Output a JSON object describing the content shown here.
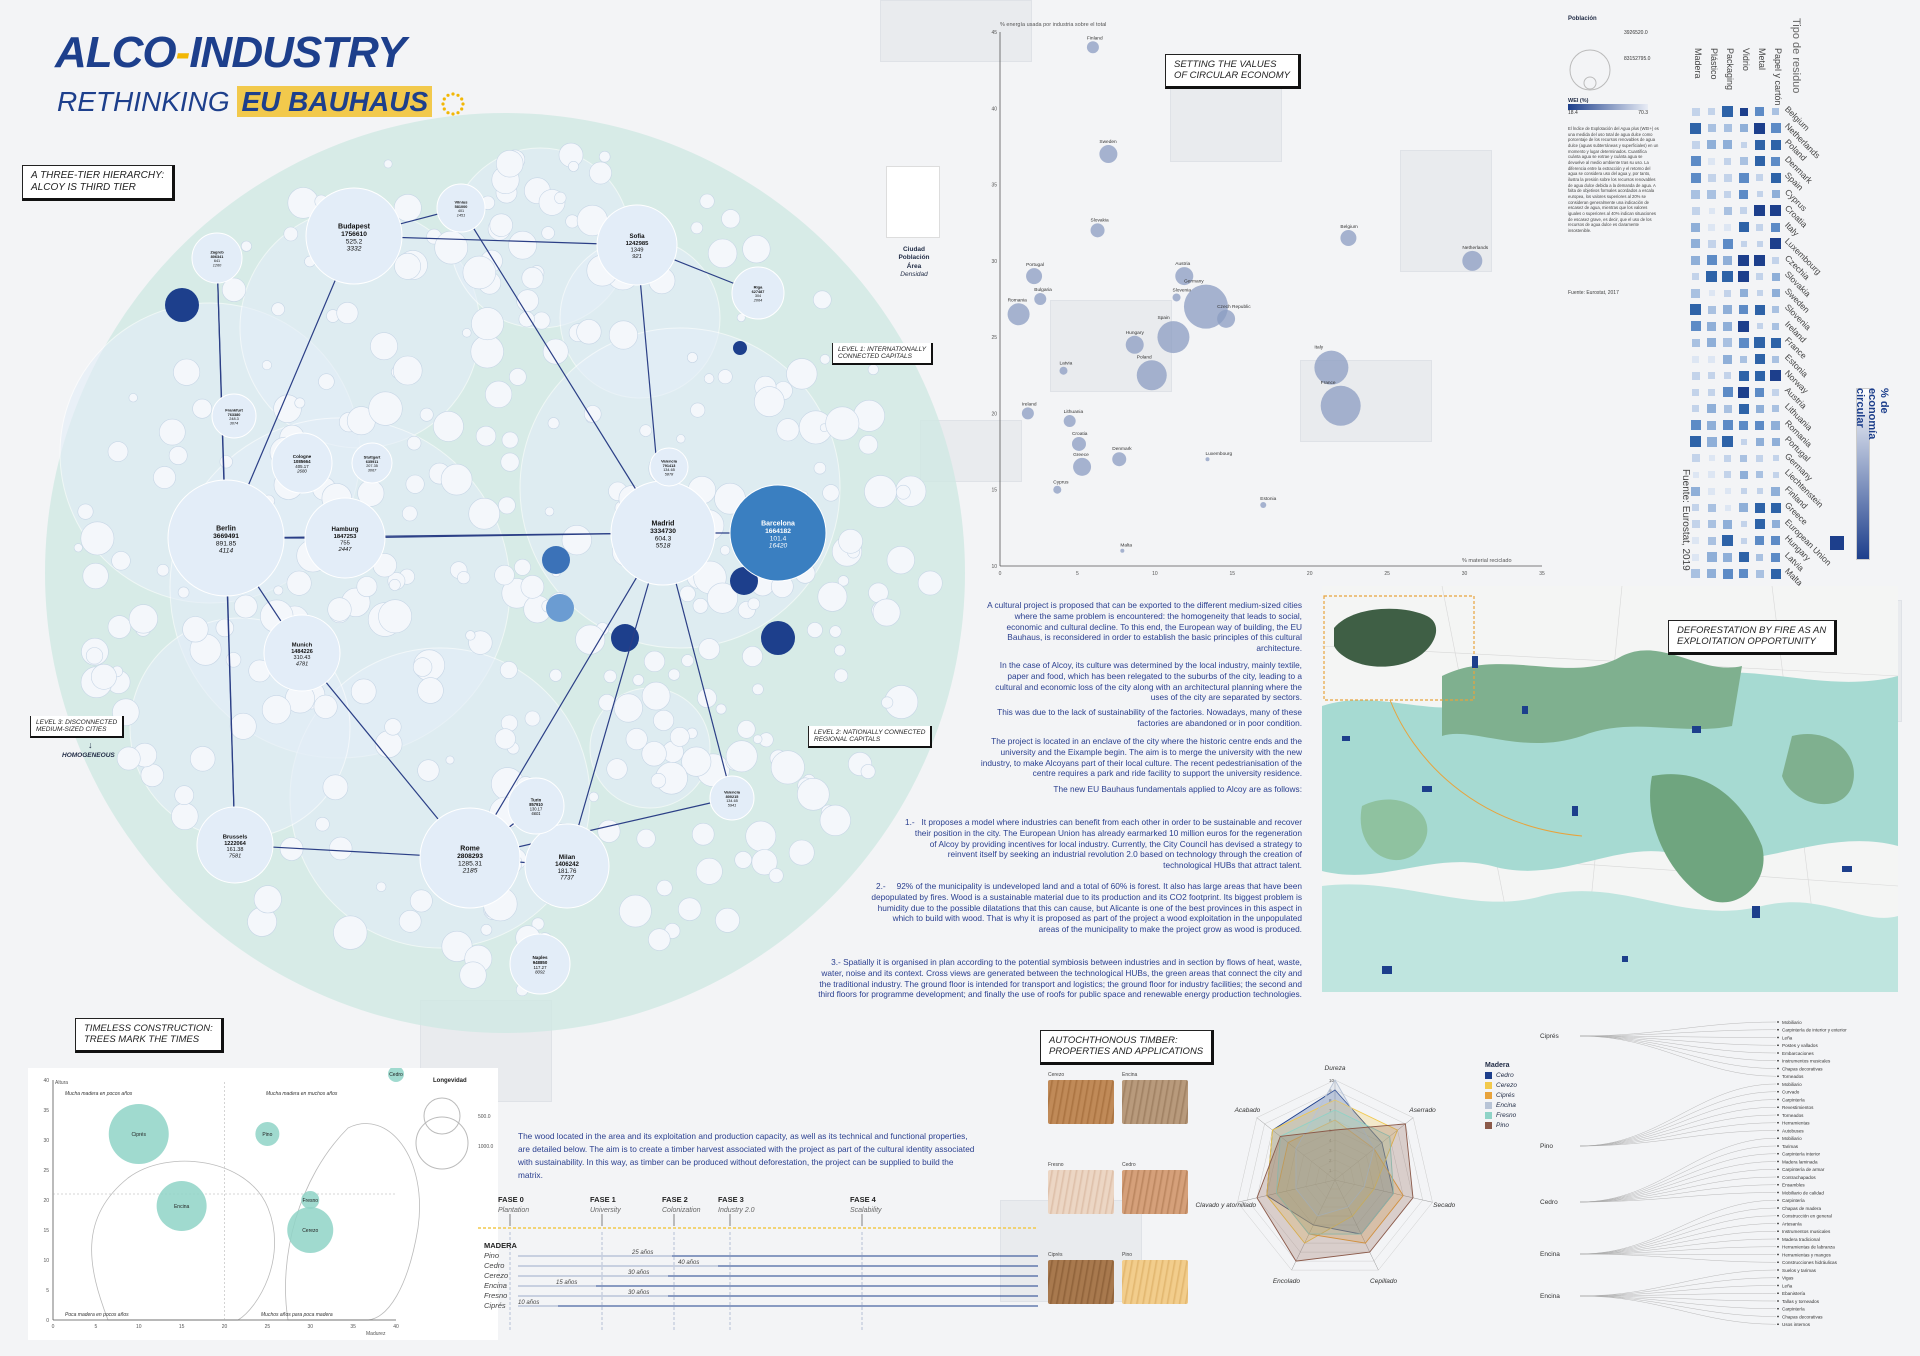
{
  "header": {
    "title_part1": "ALCO",
    "title_dash": "-",
    "title_part2": "INDUSTRY",
    "subtitle": "RETHINKING",
    "subtitle_eu": "EU BAUHAUS"
  },
  "labels": {
    "three_tier": "A THREE-TIER HIERARCHY:\nALCOY IS THIRD TIER",
    "level1": "LEVEL 1: INTERNATIONALLY\nCONNECTED CAPITALS",
    "level2": "LEVEL 2: NATIONALLY CONNECTED\nREGIONAL CAPITALS",
    "level3": "LEVEL 3: DISCONNECTED\nMEDIUM-SIZED CITIES",
    "homogeneous": "HOMOGENEOUS",
    "setting_values": "SETTING THE VALUES\nOF CIRCULAR ECONOMY",
    "deforestation": "DEFORESTATION BY FIRE AS AN\nEXPLOITATION OPPORTUNITY",
    "timeless": "TIMELESS CONSTRUCTION:\nTREES MARK THE TIMES",
    "timber": "AUTOCHTHONOUS TIMBER:\nPROPERTIES AND APPLICATIONS"
  },
  "network": {
    "cities": [
      {
        "name": "Berlin",
        "pop": "3669491",
        "area": "891.85",
        "dens": "4114"
      },
      {
        "name": "Madrid",
        "pop": "3334730",
        "area": "604.3",
        "dens": "5518"
      },
      {
        "name": "Rome",
        "pop": "2808293",
        "area": "1285.31",
        "dens": "2185"
      },
      {
        "name": "Brussels",
        "pop": "1222064",
        "area": "161.38",
        "dens": "7581"
      },
      {
        "name": "Barcelona",
        "pop": "1664182",
        "area": "101.4",
        "dens": "16420"
      },
      {
        "name": "Budapest",
        "pop": "1756610",
        "area": "525.2",
        "dens": "3332"
      },
      {
        "name": "Hamburg",
        "pop": "1847253",
        "area": "755",
        "dens": "2447"
      },
      {
        "name": "Sofia",
        "pop": "1242985",
        "area": "1349",
        "dens": "921"
      },
      {
        "name": "Munich",
        "pop": "1484226",
        "area": "310.43",
        "dens": "4781"
      },
      {
        "name": "Milan",
        "pop": "1406242",
        "area": "181.76",
        "dens": "7737"
      },
      {
        "name": "Naples",
        "pop": "948850",
        "area": "117.27",
        "dens": "8092"
      },
      {
        "name": "Turin",
        "pop": "857910",
        "area": "130.17",
        "dens": "6601"
      },
      {
        "name": "Valencia",
        "pop": "800215",
        "area": "134.65",
        "dens": "5941"
      },
      {
        "name": "Zagreb",
        "pop": "806341",
        "area": "641",
        "dens": "1260"
      },
      {
        "name": "Riga",
        "pop": "627487",
        "area": "304",
        "dens": "2064"
      },
      {
        "name": "Vilnius",
        "pop": "581000",
        "area": "401",
        "dens": "1451"
      },
      {
        "name": "Cologne",
        "pop": "1085664",
        "area": "405.17",
        "dens": "2680"
      },
      {
        "name": "Frankfurt",
        "pop": "763380",
        "area": "248.3",
        "dens": "3074"
      },
      {
        "name": "Stuttgart",
        "pop": "635911",
        "area": "207.35",
        "dens": "3067"
      },
      {
        "name": "Valencia",
        "pop": "791413",
        "area": "134.65",
        "dens": "5878"
      }
    ]
  },
  "scatter": {
    "ylabel": "% energía usada por industria sobre el total",
    "xlabel": "% material reciclado",
    "legend_title": "Población",
    "legend_val1": "3926520.0",
    "legend_val2": "83152795.0",
    "wei_label": "WEI (%)",
    "wei_min": "18.4",
    "wei_max": "70.3",
    "mini_legend": [
      "Ciudad",
      "Población",
      "Área",
      "Densidad"
    ],
    "description": "El Índice de Explotación del Agua plus (WEI+) es una medida del uso total de agua dulce como porcentaje de los recursos renovables de agua dulce (aguas subterráneas y superficiales) en un momento y lugar determinados. Cuantifica cuánta agua se extrae y cuánta agua se devuelve al medio ambiente tras su uso. La diferencia entre la extracción y el retorno del agua se considera uso del agua y, por tanto, ilustra la presión sobre los recursos renovables de agua dulce debida a la demanda de agua. A falta de objetivos formales acordados a escala europea, los valores superiores al 20% se consideran generalmente una indicación de escasez de agua, mientras que los valores iguales o superiores al 40% indican situaciones de escasez grave, es decir, que el uso de los recursos de agua dulce es claramente insostenible.",
    "source": "Fuente: Eurostat, 2017",
    "countries": [
      {
        "name": "Finland",
        "x": 6.0,
        "y": 44.0,
        "r": 6
      },
      {
        "name": "Sweden",
        "x": 7.0,
        "y": 37.0,
        "r": 9
      },
      {
        "name": "Slovakia",
        "x": 6.3,
        "y": 32.0,
        "r": 7
      },
      {
        "name": "Belgium",
        "x": 22.5,
        "y": 31.5,
        "r": 8
      },
      {
        "name": "Netherlands",
        "x": 30.5,
        "y": 30.0,
        "r": 10
      },
      {
        "name": "Portugal",
        "x": 2.2,
        "y": 29.0,
        "r": 8
      },
      {
        "name": "Austria",
        "x": 11.9,
        "y": 29.0,
        "r": 9
      },
      {
        "name": "Bulgaria",
        "x": 2.6,
        "y": 27.5,
        "r": 6
      },
      {
        "name": "Slovenia",
        "x": 11.4,
        "y": 27.6,
        "r": 4
      },
      {
        "name": "Germany",
        "x": 13.3,
        "y": 27.0,
        "r": 22
      },
      {
        "name": "Czech Republic",
        "x": 14.6,
        "y": 26.2,
        "r": 9
      },
      {
        "name": "Romania",
        "x": 1.2,
        "y": 26.5,
        "r": 11
      },
      {
        "name": "Spain",
        "x": 11.2,
        "y": 25.0,
        "r": 16
      },
      {
        "name": "Hungary",
        "x": 8.7,
        "y": 24.5,
        "r": 9
      },
      {
        "name": "Italy",
        "x": 21.4,
        "y": 23.0,
        "r": 17
      },
      {
        "name": "Latvia",
        "x": 4.1,
        "y": 22.8,
        "r": 4
      },
      {
        "name": "Poland",
        "x": 9.8,
        "y": 22.5,
        "r": 15
      },
      {
        "name": "Ireland",
        "x": 1.8,
        "y": 20.0,
        "r": 6
      },
      {
        "name": "Lithuania",
        "x": 4.5,
        "y": 19.5,
        "r": 6
      },
      {
        "name": "France",
        "x": 22.0,
        "y": 20.5,
        "r": 20
      },
      {
        "name": "Croatia",
        "x": 5.1,
        "y": 18.0,
        "r": 7
      },
      {
        "name": "Denmark",
        "x": 7.7,
        "y": 17.0,
        "r": 7
      },
      {
        "name": "Greece",
        "x": 5.3,
        "y": 16.5,
        "r": 9
      },
      {
        "name": "Luxembourg",
        "x": 13.4,
        "y": 17.0,
        "r": 2
      },
      {
        "name": "Cyprus",
        "x": 3.7,
        "y": 15.0,
        "r": 4
      },
      {
        "name": "Estonia",
        "x": 17.0,
        "y": 14.0,
        "r": 3
      },
      {
        "name": "Malta",
        "x": 7.9,
        "y": 11.0,
        "r": 2
      }
    ],
    "xticks": [
      "0",
      "5",
      "10",
      "15",
      "20",
      "25",
      "30",
      "35"
    ],
    "yticks": [
      "10",
      "15",
      "20",
      "25",
      "30",
      "35",
      "40",
      "45"
    ]
  },
  "heatmap": {
    "title": "Tipo de residuo",
    "legend": "% de economía circular",
    "source": "Fuente: Eurostat, 2019",
    "columns": [
      "Madera",
      "Plástico",
      "Packaging",
      "Vidrio",
      "Metal",
      "Papel y cartón"
    ],
    "rows": [
      "Belgium",
      "Netherlands",
      "Poland",
      "Denmark",
      "Spain",
      "Cyprus",
      "Croatia",
      "Italy",
      "Luxembourg",
      "Czechia",
      "Slovakia",
      "Sweden",
      "Slovenia",
      "Ireland",
      "France",
      "Estonia",
      "Norway",
      "Austria",
      "Lithuania",
      "Romania",
      "Portugal",
      "Germany",
      "Liechtenstein",
      "Finland",
      "Greece",
      "European Union",
      "Hungary",
      "Latvia",
      "Malta"
    ]
  },
  "text": {
    "p1": "A cultural project is proposed that can be exported to the different medium-sized cities where the same problem is encountered: the homogeneity that leads to social, economic and cultural decline. To this end, the European way of building, the EU Bauhaus, is reconsidered in order to establish the basic principles of this cultural architecture.",
    "p2": "In the case of Alcoy, its culture was determined by the local industry, mainly textile, paper and food, which has been relegated to the suburbs of the city, leading to a cultural and economic loss of the city along with an architectural planning where the uses of the city are separated by sectors.",
    "p3": "This was due to the lack of sustainability of the factories. Nowadays, many of these factories are abandoned or in poor condition.",
    "p4": "The project is located in an enclave of the city where the historic centre ends and the university and the Eixample begin. The aim is to merge the university with the new industry, to make Alcoyans part of their local culture. The recent pedestrianisation of the centre requires a park and ride facility to support the university residence.",
    "p5": "The new EU Bauhaus fundamentals applied to Alcoy are as follows:",
    "n1": "1.-",
    "p6": "It proposes a model where industries can benefit from each other in order to be sustainable and recover their position in the city. The European Union has already earmarked 10 million euros for the regeneration of Alcoy by providing incentives for local industry. Currently, the City Council has devised a strategy to reinvent itself by seeking an industrial revolution 2.0 based on technology through the creation of technological HUBs that attract talent.",
    "n2": "2.-",
    "p7": "92% of the municipality is undeveloped land and a total of 60% is forest. It also has large areas that have been depopulated by fires. Wood is a sustainable material due to its production and its CO2 footprint. Its biggest problem is humidity due to the possible dilatations that this can cause, but Alicante is one of the best provinces in this aspect in which to build with wood. That is why it is proposed as part of the project a wood exploitation in the unpopulated areas of the municipality to make the project grow as wood is produced.",
    "p8": "3.- Spatially it is organised in plan according to the potential symbiosis between industries and in section by flows of heat, waste, water, noise and its context. Cross views are generated between the technological HUBs, the green areas that connect the city and the traditional industry. The ground floor is intended for transport and logistics; the ground floor for industry facilities; the second and third floors for programme development; and finally the use of roofs for public space and renewable energy production technologies.",
    "wood_para": "The wood located in the area and its exploitation and production capacity, as well as its technical and functional properties, are detailed below. The aim is to create a timber harvest associated with the project as part of the cultural identity associated with sustainability. In this way, as timber can be produced without deforestation, the project can be supplied to build the matrix."
  },
  "trees": {
    "ylabel": "Altura",
    "xlabel": "Madurez",
    "legend_title": "Longevidad",
    "legend_val1": "500.0",
    "legend_val2": "1000.0",
    "note_tl": "Mucha madera en pocos años",
    "note_tr": "Mucha madera en muchos años",
    "note_bl": "Poca madera en pocos años",
    "note_br": "Muchos años para poca madera",
    "yticks": [
      "0",
      "5",
      "10",
      "15",
      "20",
      "25",
      "30",
      "35",
      "40"
    ],
    "xticks": [
      "0",
      "5",
      "10",
      "15",
      "20",
      "25",
      "30",
      "35",
      "40"
    ],
    "items": [
      {
        "name": "Ciprés",
        "x": 10,
        "y": 31,
        "r": 30
      },
      {
        "name": "Encina",
        "x": 15,
        "y": 19,
        "r": 25
      },
      {
        "name": "Pino",
        "x": 25,
        "y": 31,
        "r": 12
      },
      {
        "name": "Fresno",
        "x": 30,
        "y": 20,
        "r": 9
      },
      {
        "name": "Cerezo",
        "x": 30,
        "y": 15,
        "r": 23
      },
      {
        "name": "Cedro",
        "x": 40,
        "y": 41,
        "r": 8
      }
    ]
  },
  "timeline": {
    "phases": [
      {
        "code": "FASE 0",
        "name": "Plantation"
      },
      {
        "code": "FASE 1",
        "name": "University"
      },
      {
        "code": "FASE 2",
        "name": "Colonization"
      },
      {
        "code": "FASE 3",
        "name": "Industry 2.0"
      },
      {
        "code": "FASE 4",
        "name": "Scalability"
      }
    ],
    "header": "MADERA",
    "species": [
      "Pino",
      "Cedro",
      "Cerezo",
      "Encina",
      "Fresno",
      "Ciprés"
    ],
    "bars": [
      "25 años",
      "40 años",
      "30 años",
      "15 años",
      "30 años",
      "10 años"
    ]
  },
  "woods": {
    "samples": [
      "Cerezo",
      "Encina",
      "Fresno",
      "Cedro",
      "Ciprés",
      "Pino"
    ],
    "radar_axes": [
      "Dureza",
      "Aserrado",
      "Secado",
      "Cepillado",
      "Encolado",
      "Clavado y atornillado",
      "Acabado"
    ],
    "radar_ticks": [
      "1",
      "2",
      "3",
      "4",
      "5",
      "6",
      "7",
      "8",
      "9",
      "10"
    ],
    "legend_title": "Madera",
    "legend": [
      {
        "name": "Cedro",
        "color": "#1d3f8c"
      },
      {
        "name": "Cerezo",
        "color": "#f2c94c"
      },
      {
        "name": "Ciprés",
        "color": "#e8a33c"
      },
      {
        "name": "Encina",
        "color": "#b8c4d6"
      },
      {
        "name": "Fresno",
        "color": "#8fd3c7"
      },
      {
        "name": "Pino",
        "color": "#8b5a4a"
      }
    ],
    "tree_roots": [
      "Ciprés",
      "Pino",
      "Cedro",
      "Encina",
      "Encina"
    ],
    "uses": [
      "Mobiliario",
      "Carpintería de interior y exterior",
      "Leña",
      "Postes y vallados",
      "Embarcaciones",
      "Instrumentos musicales",
      "Chapas decorativas",
      "Torneados",
      "Mobiliario",
      "Curvado",
      "Carpintería",
      "Revestimientos",
      "Torneados",
      "Herramientas",
      "Autobuses",
      "Mobiliario",
      "Tarimas",
      "Carpintería interior",
      "Madera laminada",
      "Carpintería de armar",
      "Contrachapados",
      "Ensambles",
      "Mobiliario de calidad",
      "Carpintería",
      "Chapas de madera",
      "Construcción en general",
      "Artesanía",
      "Instrumentos musicales",
      "Madera tradicional",
      "Herramientas de labranza",
      "Herramientas y mangos",
      "Construcciones hidráulicas",
      "Suelos y tarimas",
      "Vigas",
      "Leña",
      "Ebanistería",
      "Tallas y torneados",
      "Carpintería",
      "Chapas decorativas",
      "Usos internos"
    ]
  }
}
